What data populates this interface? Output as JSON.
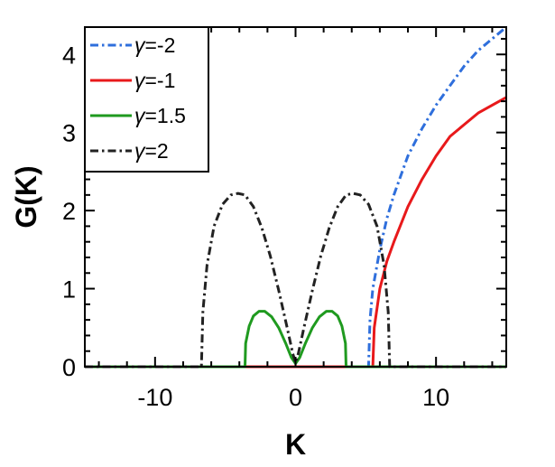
{
  "chart_data": {
    "type": "line",
    "xlabel": "K",
    "ylabel": "G(K)",
    "xlim": [
      -15,
      15
    ],
    "ylim": [
      0,
      4.35
    ],
    "xticks": [
      -10,
      0,
      10
    ],
    "xtick_labels": [
      "-10",
      "0",
      "10"
    ],
    "yticks": [
      0,
      1,
      2,
      3,
      4
    ],
    "ytick_labels": [
      "0",
      "1",
      "2",
      "3",
      "4"
    ],
    "grid": false,
    "legend_position": "top-left",
    "series": [
      {
        "name": "γ=-2",
        "label_symbol": "γ",
        "label_rest": "=-2",
        "color": "#2f6fdc",
        "dash": "dashdot",
        "x": [
          -15,
          5.2,
          5.3,
          5.5,
          6,
          6.5,
          7,
          8,
          9,
          10,
          11,
          12,
          13,
          14,
          15
        ],
        "y": [
          0,
          0,
          0.6,
          1.0,
          1.5,
          1.9,
          2.2,
          2.7,
          3.05,
          3.35,
          3.6,
          3.85,
          4.05,
          4.2,
          4.35
        ]
      },
      {
        "name": "γ=-1",
        "label_symbol": "γ",
        "label_rest": "=-1",
        "color": "#e8191b",
        "dash": "solid",
        "x": [
          -15,
          5.5,
          5.6,
          6,
          6.5,
          7,
          8,
          9,
          10,
          11,
          12,
          13,
          14,
          15
        ],
        "y": [
          0,
          0,
          0.5,
          1.0,
          1.35,
          1.6,
          2.05,
          2.4,
          2.7,
          2.95,
          3.1,
          3.25,
          3.35,
          3.45
        ]
      },
      {
        "name": "γ=1.5",
        "label_symbol": "γ",
        "label_rest": "=1.5",
        "color": "#1f9a1f",
        "dash": "solid",
        "x": [
          -15,
          -3.6,
          -3.55,
          -3.3,
          -3.0,
          -2.6,
          -2.2,
          -1.7,
          -1.2,
          -0.7,
          -0.3,
          0,
          0.3,
          0.7,
          1.2,
          1.7,
          2.2,
          2.6,
          3.0,
          3.3,
          3.55,
          3.6,
          15
        ],
        "y": [
          0,
          0,
          0.3,
          0.52,
          0.65,
          0.71,
          0.71,
          0.64,
          0.5,
          0.3,
          0.12,
          0.04,
          0.12,
          0.3,
          0.5,
          0.64,
          0.71,
          0.71,
          0.65,
          0.52,
          0.3,
          0,
          0
        ]
      },
      {
        "name": "γ=2",
        "label_symbol": "γ",
        "label_rest": "=2",
        "color": "#222222",
        "dash": "dashdot",
        "x": [
          -15,
          -6.7,
          -6.6,
          -6.3,
          -5.8,
          -5.2,
          -4.6,
          -4.1,
          -3.6,
          -3.0,
          -2.4,
          -1.8,
          -1.2,
          -0.6,
          -0.2,
          0,
          0.2,
          0.6,
          1.2,
          1.8,
          2.4,
          3.0,
          3.6,
          4.1,
          4.6,
          5.2,
          5.8,
          6.3,
          6.6,
          6.7,
          15
        ],
        "y": [
          0,
          0,
          0.7,
          1.3,
          1.8,
          2.08,
          2.2,
          2.22,
          2.2,
          2.05,
          1.78,
          1.42,
          0.98,
          0.5,
          0.17,
          0.05,
          0.17,
          0.5,
          0.98,
          1.42,
          1.78,
          2.05,
          2.2,
          2.22,
          2.2,
          2.08,
          1.8,
          1.3,
          0.7,
          0,
          0
        ]
      }
    ]
  }
}
